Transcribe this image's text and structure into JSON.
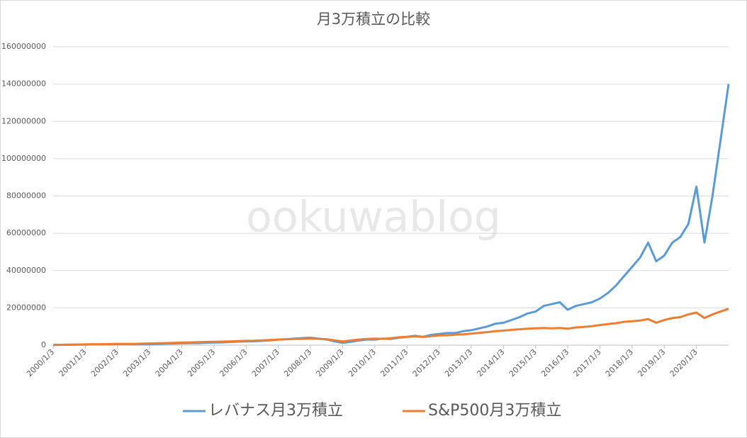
{
  "chart_data": {
    "type": "line",
    "title": "月3万積立の比較",
    "watermark": "ookuwablog",
    "categories": [
      "2000/1/3",
      null,
      null,
      null,
      "2001/1/3",
      null,
      null,
      null,
      "2002/1/3",
      null,
      null,
      null,
      "2003/1/3",
      null,
      null,
      null,
      "2004/1/3",
      null,
      null,
      null,
      "2005/1/3",
      null,
      null,
      null,
      "2006/1/3",
      null,
      null,
      null,
      "2007/1/3",
      null,
      null,
      null,
      "2008/1/3",
      null,
      null,
      null,
      "2009/1/3",
      null,
      null,
      null,
      "2010/1/3",
      null,
      null,
      null,
      "2011/1/3",
      null,
      null,
      null,
      "2012/1/3",
      null,
      null,
      null,
      "2013/1/3",
      null,
      null,
      null,
      "2014/1/3",
      null,
      null,
      null,
      "2015/1/3",
      null,
      null,
      null,
      "2016/1/3",
      null,
      null,
      null,
      "2017/1/3",
      null,
      null,
      null,
      "2018/1/3",
      null,
      null,
      null,
      "2019/1/3",
      null,
      null,
      null,
      "2020/1/3",
      null,
      null,
      null,
      null
    ],
    "series": [
      {
        "name": "レバナス月3万積立",
        "color": "#5b9bd5",
        "values": [
          100000,
          200000,
          200000,
          300000,
          300000,
          400000,
          400000,
          400000,
          500000,
          500000,
          400000,
          500000,
          500000,
          700000,
          800000,
          900000,
          1000000,
          1100000,
          1100000,
          1300000,
          1400000,
          1500000,
          1700000,
          1900000,
          2000000,
          2100000,
          2300000,
          2600000,
          3000000,
          3200000,
          3500000,
          3800000,
          4000000,
          3500000,
          3000000,
          2000000,
          1200000,
          1800000,
          2500000,
          3000000,
          3000000,
          3500000,
          3300000,
          4000000,
          4500000,
          5000000,
          4500000,
          5500000,
          6000000,
          6500000,
          6500000,
          7500000,
          8000000,
          9000000,
          10000000,
          11500000,
          12000000,
          13500000,
          15000000,
          17000000,
          18000000,
          21000000,
          22000000,
          23000000,
          19000000,
          21000000,
          22000000,
          23000000,
          25000000,
          28000000,
          32000000,
          37000000,
          42000000,
          47000000,
          55000000,
          45000000,
          48000000,
          55000000,
          58000000,
          65000000,
          85000000,
          55000000,
          80000000,
          110000000,
          140000000
        ]
      },
      {
        "name": "S&P500月3万積立",
        "color": "#ed7d31",
        "values": [
          100000,
          200000,
          300000,
          300000,
          400000,
          500000,
          500000,
          600000,
          700000,
          700000,
          700000,
          800000,
          900000,
          1000000,
          1100000,
          1200000,
          1400000,
          1500000,
          1600000,
          1700000,
          1800000,
          1900000,
          2000000,
          2200000,
          2300000,
          2400000,
          2600000,
          2800000,
          3000000,
          3100000,
          3300000,
          3400000,
          3500000,
          3400000,
          3200000,
          2600000,
          2000000,
          2500000,
          3000000,
          3300000,
          3500000,
          3400000,
          3700000,
          4200000,
          4500000,
          4700000,
          4400000,
          4800000,
          5200000,
          5300000,
          5600000,
          5800000,
          6200000,
          6600000,
          7000000,
          7500000,
          7800000,
          8200000,
          8500000,
          8800000,
          9000000,
          9200000,
          9000000,
          9200000,
          8800000,
          9500000,
          9800000,
          10200000,
          10800000,
          11300000,
          11800000,
          12500000,
          12800000,
          13200000,
          14000000,
          12000000,
          13500000,
          14500000,
          15000000,
          16500000,
          17500000,
          14500000,
          16500000,
          18000000,
          19500000
        ]
      }
    ],
    "ylim": [
      0,
      160000000
    ],
    "yticks": [
      0,
      20000000,
      40000000,
      60000000,
      80000000,
      100000000,
      120000000,
      140000000,
      160000000
    ],
    "grid": true,
    "legend": "bottom"
  }
}
